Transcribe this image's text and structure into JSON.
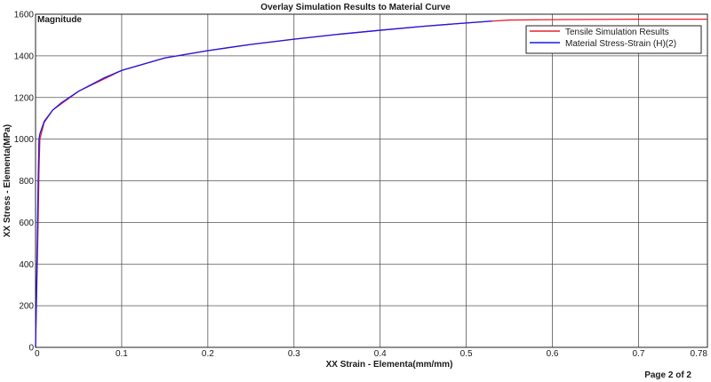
{
  "chart_data": {
    "type": "line",
    "title": "Overlay Simulation Results to Material Curve",
    "corner_label": "Magnitude",
    "xlabel": "XX Strain - Elementa(mm/mm)",
    "ylabel": "XX Stress - Elementa(MPa)",
    "xlim": [
      0,
      0.78
    ],
    "ylim": [
      0,
      1600
    ],
    "x_ticks": [
      0,
      0.1,
      0.2,
      0.3,
      0.4,
      0.5,
      0.6,
      0.7,
      0.78
    ],
    "x_tick_labels": [
      "0",
      "0.1",
      "0.2",
      "0.3",
      "0.4",
      "0.5",
      "0.6",
      "0.7",
      "0.78"
    ],
    "y_ticks": [
      0,
      200,
      400,
      600,
      800,
      1000,
      1200,
      1400,
      1600
    ],
    "y_tick_labels": [
      "0",
      "200",
      "400",
      "600",
      "800",
      "1000",
      "1200",
      "1400",
      "1600"
    ],
    "grid": true,
    "legend_position": "top-right",
    "series": [
      {
        "name": "Tensile Simulation Results",
        "color": "#e8202a",
        "x": [
          0,
          0.001,
          0.002,
          0.003,
          0.004,
          0.005,
          0.01,
          0.02,
          0.05,
          0.1,
          0.15,
          0.2,
          0.25,
          0.3,
          0.35,
          0.4,
          0.45,
          0.5,
          0.53,
          0.55,
          0.6,
          0.65,
          0.7,
          0.75,
          0.78
        ],
        "y": [
          0,
          200,
          400,
          600,
          850,
          1000,
          1080,
          1140,
          1230,
          1330,
          1390,
          1425,
          1455,
          1480,
          1503,
          1523,
          1542,
          1558,
          1567,
          1572,
          1574,
          1575,
          1576,
          1576,
          1576
        ]
      },
      {
        "name": "Material Stress-Strain (H)(2)",
        "color": "#1a1ae6",
        "x": [
          0,
          0.001,
          0.002,
          0.003,
          0.004,
          0.005,
          0.01,
          0.02,
          0.03,
          0.05,
          0.08,
          0.1,
          0.15,
          0.2,
          0.25,
          0.3,
          0.35,
          0.4,
          0.45,
          0.5,
          0.53
        ],
        "y": [
          0,
          250,
          500,
          800,
          1000,
          1025,
          1085,
          1140,
          1175,
          1230,
          1295,
          1330,
          1390,
          1425,
          1455,
          1480,
          1503,
          1523,
          1542,
          1558,
          1567
        ]
      }
    ]
  },
  "footer": {
    "page_label": "Page 2 of 2"
  }
}
